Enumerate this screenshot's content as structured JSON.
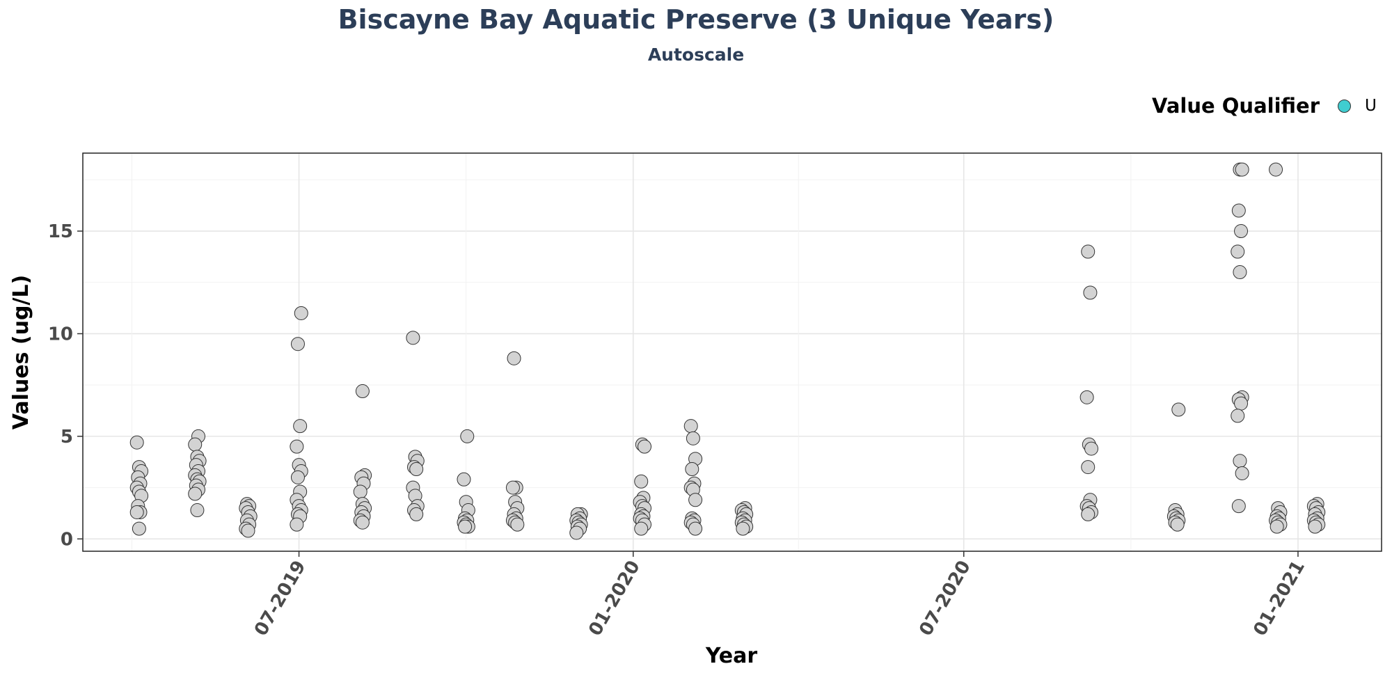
{
  "chart_data": {
    "type": "scatter",
    "title": "Biscayne Bay Aquatic Preserve (3 Unique Years)",
    "subtitle": "Autoscale",
    "xlabel": "Year",
    "ylabel": "Values (ug/L)",
    "x_ticks": [
      "07-2019",
      "01-2020",
      "07-2020",
      "01-2021"
    ],
    "y_ticks": [
      0,
      5,
      10,
      15
    ],
    "xlim": [
      "2019-03-04",
      "2021-02-16"
    ],
    "ylim": [
      -0.6,
      18.8
    ],
    "grid": true,
    "legend": {
      "title": "Value Qualifier",
      "label": "U",
      "color": "#40cdd0",
      "position": "top-right"
    },
    "point_color": "#d3d3d3",
    "groups": [
      {
        "date": "2019-04-04",
        "values": [
          4.7,
          3.5,
          3.3,
          3.0,
          2.7,
          2.5,
          2.3,
          2.1,
          1.6,
          1.3,
          1.3,
          0.5
        ]
      },
      {
        "date": "2019-05-06",
        "values": [
          5.0,
          4.6,
          4.0,
          3.8,
          3.6,
          3.3,
          3.1,
          2.9,
          2.8,
          2.6,
          2.4,
          2.2,
          1.4
        ]
      },
      {
        "date": "2019-06-03",
        "values": [
          1.7,
          1.6,
          1.5,
          1.3,
          1.1,
          0.9,
          0.7,
          0.5,
          0.4
        ]
      },
      {
        "date": "2019-07-01",
        "values": [
          11.0,
          9.5,
          5.5,
          4.5,
          3.6,
          3.3,
          3.0,
          2.3,
          1.9,
          1.6,
          1.4,
          1.2,
          1.1,
          0.7
        ]
      },
      {
        "date": "2019-08-05",
        "values": [
          7.2,
          3.1,
          3.0,
          2.7,
          2.3,
          1.7,
          1.5,
          1.3,
          1.1,
          0.9,
          0.8
        ]
      },
      {
        "date": "2019-09-03",
        "values": [
          9.8,
          4.0,
          3.8,
          3.5,
          3.4,
          2.5,
          2.1,
          1.6,
          1.4,
          1.2
        ]
      },
      {
        "date": "2019-10-01",
        "values": [
          5.0,
          2.9,
          1.8,
          1.4,
          1.0,
          0.9,
          0.8,
          0.7,
          0.6,
          0.6
        ]
      },
      {
        "date": "2019-10-28",
        "values": [
          8.8,
          2.5,
          2.5,
          1.8,
          1.5,
          1.2,
          1.0,
          0.9,
          0.8,
          0.7
        ]
      },
      {
        "date": "2019-12-02",
        "values": [
          1.2,
          1.2,
          1.0,
          0.9,
          0.8,
          0.7,
          0.6,
          0.5,
          0.3
        ]
      },
      {
        "date": "2020-01-06",
        "values": [
          4.6,
          4.5,
          2.8,
          2.0,
          1.8,
          1.6,
          1.5,
          1.2,
          1.1,
          1.0,
          0.9,
          0.7,
          0.5
        ]
      },
      {
        "date": "2020-02-03",
        "values": [
          5.5,
          4.9,
          3.9,
          3.4,
          2.7,
          2.5,
          2.4,
          1.9,
          1.0,
          0.9,
          0.8,
          0.7,
          0.5
        ]
      },
      {
        "date": "2020-03-02",
        "values": [
          1.5,
          1.4,
          1.3,
          1.2,
          1.0,
          0.9,
          0.8,
          0.7,
          0.6,
          0.5
        ]
      },
      {
        "date": "2020-09-08",
        "values": [
          14.0,
          12.0,
          6.9,
          4.6,
          4.4,
          3.5,
          1.9,
          1.6,
          1.5,
          1.3,
          1.2
        ]
      },
      {
        "date": "2020-10-26",
        "values": [
          6.3,
          1.4,
          1.2,
          1.1,
          1.0,
          0.9,
          0.8,
          0.7
        ]
      },
      {
        "date": "2020-11-30",
        "values": [
          18.0,
          18.0,
          16.0,
          15.0,
          14.0,
          13.0,
          6.9,
          6.8,
          6.6,
          6.0,
          3.8,
          3.2,
          1.6
        ]
      },
      {
        "date": "2020-12-21",
        "values": [
          18.0,
          1.5,
          1.3,
          1.1,
          1.0,
          0.9,
          0.8,
          0.7,
          0.6
        ]
      },
      {
        "date": "2021-01-11",
        "values": [
          1.7,
          1.6,
          1.5,
          1.3,
          1.2,
          1.0,
          0.9,
          0.8,
          0.7,
          0.6
        ]
      }
    ]
  }
}
